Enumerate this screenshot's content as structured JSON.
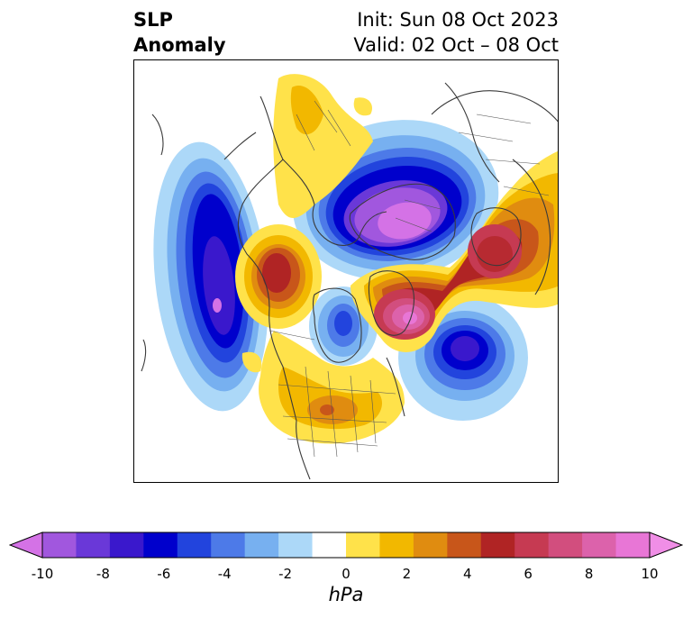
{
  "header": {
    "title_line1": "SLP",
    "title_line2": "Anomaly",
    "init_label": "Init: Sun 08 Oct 2023",
    "valid_label": "Valid: 02 Oct – 08 Oct"
  },
  "colorbar": {
    "unit": "hPa",
    "ticks": [
      "-10",
      "-8",
      "-6",
      "-4",
      "-2",
      "0",
      "2",
      "4",
      "6",
      "8",
      "10"
    ],
    "extend": "both",
    "colors": [
      "#d472e6",
      "#a157de",
      "#6a38d8",
      "#3a18cc",
      "#0000cc",
      "#2244dd",
      "#4d7ae8",
      "#77b0f0",
      "#acd8f8",
      "#ffffff",
      "#ffe24a",
      "#f2b800",
      "#e08c10",
      "#c8561a",
      "#b02424",
      "#c63a52",
      "#d24e7e",
      "#dc62ab",
      "#e876d6",
      "#f08ee6"
    ]
  }
}
